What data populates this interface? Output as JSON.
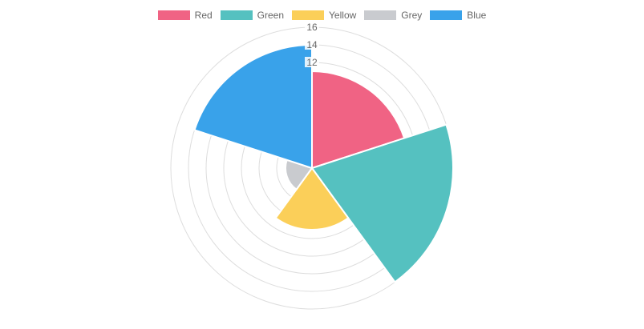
{
  "chart_data": {
    "type": "polarArea",
    "categories": [
      "Red",
      "Green",
      "Yellow",
      "Grey",
      "Blue"
    ],
    "values": [
      11,
      16,
      7,
      3,
      14
    ],
    "colors": [
      "#f06384",
      "#55c1c0",
      "#fbcf59",
      "#c9cbcf",
      "#39a2ea"
    ],
    "radial_axis": {
      "min": 0,
      "max": 16,
      "step": 2,
      "ticks_shown": [
        "16",
        "14",
        "12"
      ]
    },
    "grid": true,
    "legend_position": "top"
  }
}
